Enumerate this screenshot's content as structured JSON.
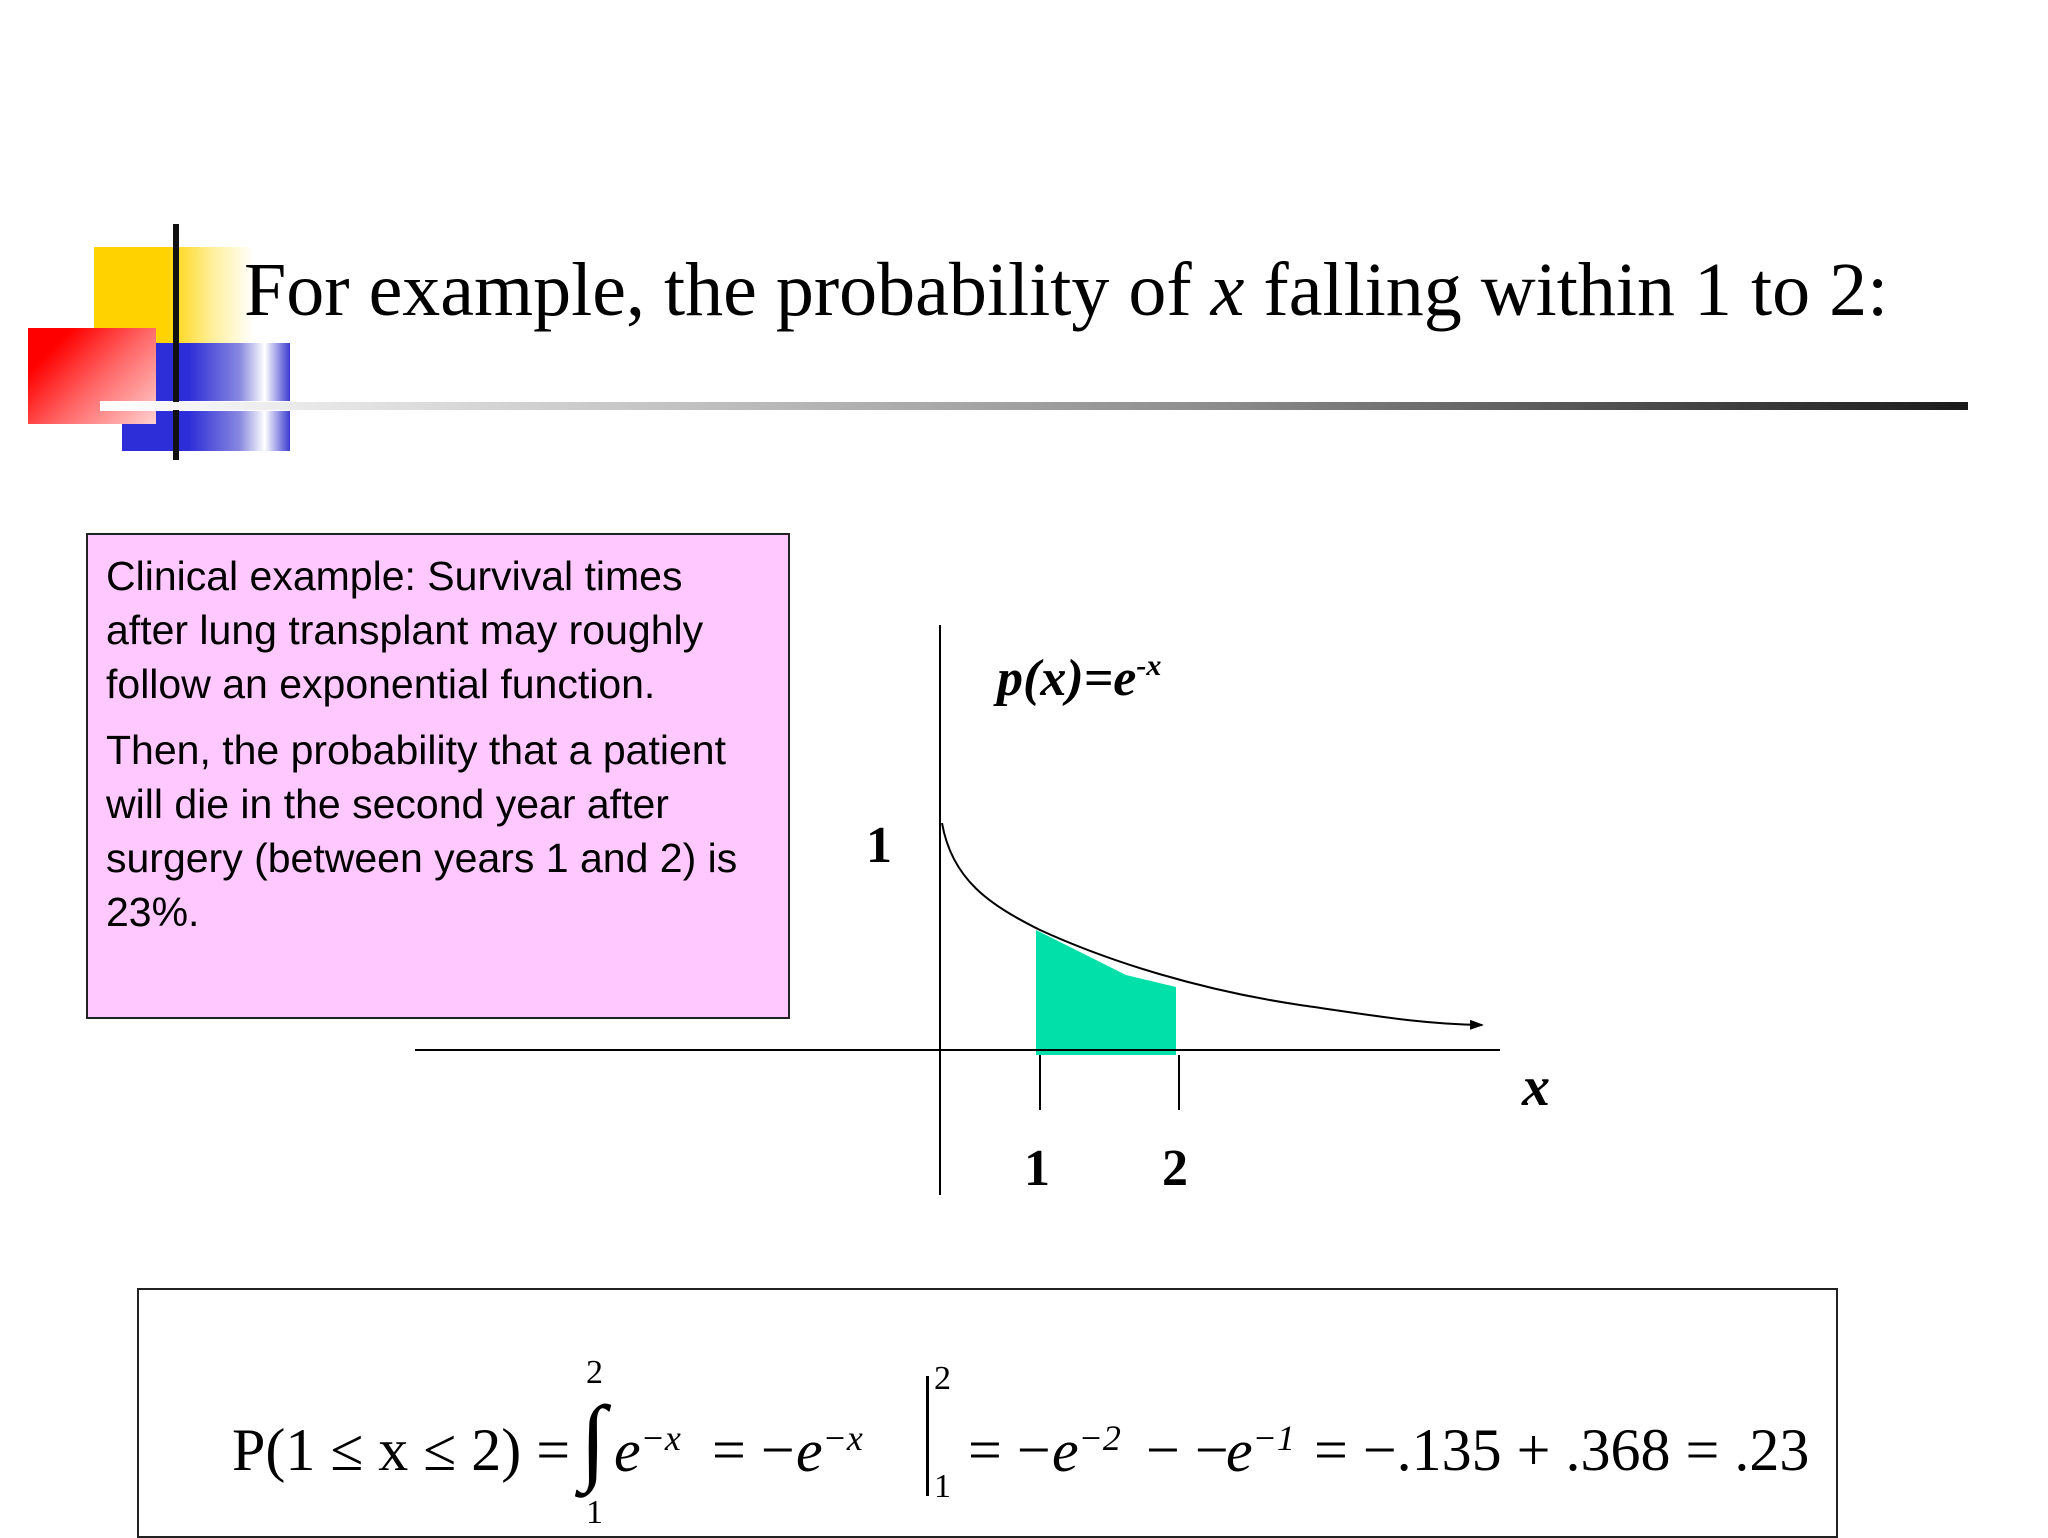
{
  "slide": {
    "title_before": "For example, the probability of ",
    "title_var": "x",
    "title_after": " falling within 1 to 2:"
  },
  "note": {
    "paragraph1": "Clinical example: Survival times after lung transplant may roughly follow an exponential function.",
    "paragraph2": "Then, the probability that a patient will die in the second year after surgery (between years 1 and 2) is 23%."
  },
  "graph": {
    "function_label_base": "p(x)=e",
    "function_label_exp": "-x",
    "y_tick": "1",
    "x_ticks": [
      "1",
      "2"
    ],
    "x_axis_label": "x",
    "shade_color": "#00e0a8"
  },
  "formula": {
    "lhs": "P(1 ≤ x ≤ 2) =",
    "integral_upper": "2",
    "integral_lower": "1",
    "integrand_base": "e",
    "integrand_exp": "−x",
    "equals1": "= −",
    "antideriv_base": "e",
    "antideriv_exp": "−x",
    "eval_upper": "2",
    "eval_lower": "1",
    "equals2": "= −",
    "term1_base": "e",
    "term1_exp": "−2",
    "minus_minus": "− −",
    "term2_base": "e",
    "term2_exp": "−1",
    "result": "= −.135 + .368 = .23"
  }
}
